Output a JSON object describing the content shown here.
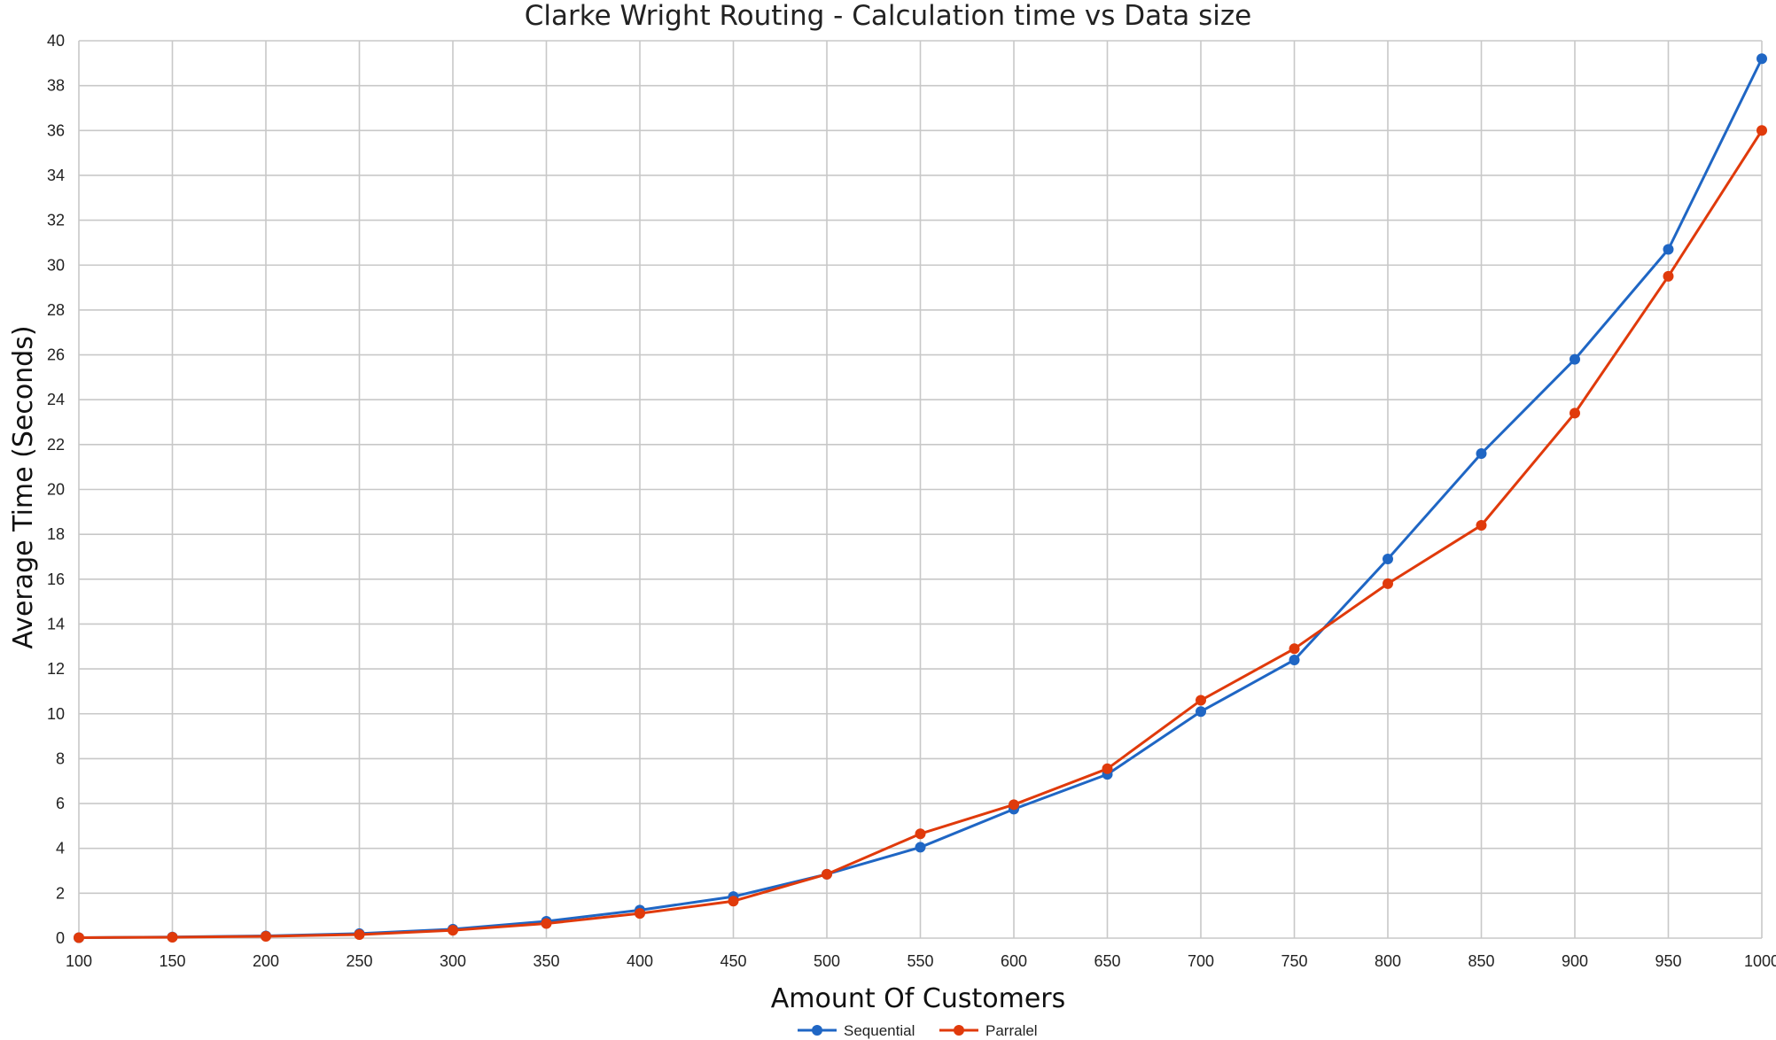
{
  "chart_data": {
    "type": "line",
    "title": "Clarke Wright Routing  - Calculation time vs Data size",
    "xlabel": "Amount Of Customers",
    "ylabel": "Average Time (Seconds)",
    "x": [
      100,
      150,
      200,
      250,
      300,
      350,
      400,
      450,
      500,
      550,
      600,
      650,
      700,
      750,
      800,
      850,
      900,
      950,
      1000
    ],
    "xlim": [
      100,
      1000
    ],
    "ylim": [
      0,
      40
    ],
    "y_ticks": [
      0,
      2,
      4,
      6,
      8,
      10,
      12,
      14,
      16,
      18,
      20,
      22,
      24,
      26,
      28,
      30,
      32,
      34,
      36,
      38,
      40
    ],
    "grid": true,
    "legend_position": "bottom",
    "series": [
      {
        "name": "Sequential",
        "color": "#1f66c4",
        "values": [
          0.02,
          0.05,
          0.1,
          0.2,
          0.4,
          0.75,
          1.25,
          1.85,
          2.85,
          4.05,
          5.75,
          7.3,
          10.1,
          12.4,
          16.9,
          21.6,
          25.8,
          30.7,
          39.2
        ]
      },
      {
        "name": "Parralel",
        "color": "#e03a0b",
        "values": [
          0.02,
          0.04,
          0.08,
          0.16,
          0.35,
          0.65,
          1.1,
          1.65,
          2.85,
          4.65,
          5.95,
          7.55,
          10.6,
          12.9,
          15.8,
          18.4,
          23.4,
          29.5,
          36.0
        ]
      }
    ]
  }
}
